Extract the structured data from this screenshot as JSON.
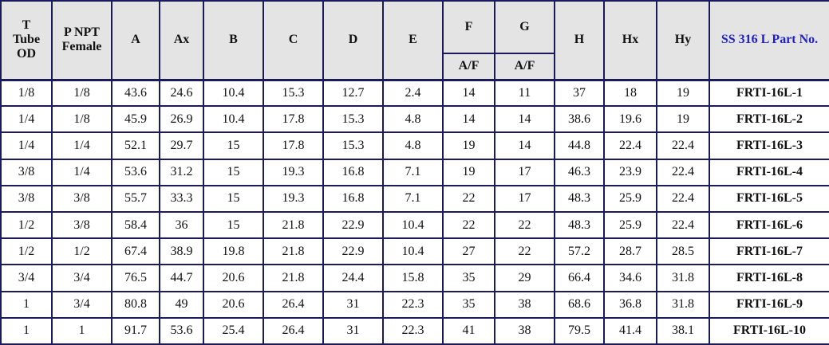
{
  "table": {
    "header": [
      "T\nTube\nOD",
      "P NPT\nFemale",
      "A",
      "Ax",
      "B",
      "C",
      "D",
      "E",
      "F",
      "G",
      "H",
      "Hx",
      "Hy",
      "SS 316 L Part No."
    ],
    "subheader": [
      "A/F",
      "A/F"
    ],
    "rows": [
      [
        "1/8",
        "1/8",
        "43.6",
        "24.6",
        "10.4",
        "15.3",
        "12.7",
        "2.4",
        "14",
        "11",
        "37",
        "18",
        "19",
        "FRTI-16L-1"
      ],
      [
        "1/4",
        "1/8",
        "45.9",
        "26.9",
        "10.4",
        "17.8",
        "15.3",
        "4.8",
        "14",
        "14",
        "38.6",
        "19.6",
        "19",
        "FRTI-16L-2"
      ],
      [
        "1/4",
        "1/4",
        "52.1",
        "29.7",
        "15",
        "17.8",
        "15.3",
        "4.8",
        "19",
        "14",
        "44.8",
        "22.4",
        "22.4",
        "FRTI-16L-3"
      ],
      [
        "3/8",
        "1/4",
        "53.6",
        "31.2",
        "15",
        "19.3",
        "16.8",
        "7.1",
        "19",
        "17",
        "46.3",
        "23.9",
        "22.4",
        "FRTI-16L-4"
      ],
      [
        "3/8",
        "3/8",
        "55.7",
        "33.3",
        "15",
        "19.3",
        "16.8",
        "7.1",
        "22",
        "17",
        "48.3",
        "25.9",
        "22.4",
        "FRTI-16L-5"
      ],
      [
        "1/2",
        "3/8",
        "58.4",
        "36",
        "15",
        "21.8",
        "22.9",
        "10.4",
        "22",
        "22",
        "48.3",
        "25.9",
        "22.4",
        "FRTI-16L-6"
      ],
      [
        "1/2",
        "1/2",
        "67.4",
        "38.9",
        "19.8",
        "21.8",
        "22.9",
        "10.4",
        "27",
        "22",
        "57.2",
        "28.7",
        "28.5",
        "FRTI-16L-7"
      ],
      [
        "3/4",
        "3/4",
        "76.5",
        "44.7",
        "20.6",
        "21.8",
        "24.4",
        "15.8",
        "35",
        "29",
        "66.4",
        "34.6",
        "31.8",
        "FRTI-16L-8"
      ],
      [
        "1",
        "3/4",
        "80.8",
        "49",
        "20.6",
        "26.4",
        "31",
        "22.3",
        "35",
        "38",
        "68.6",
        "36.8",
        "31.8",
        "FRTI-16L-9"
      ],
      [
        "1",
        "1",
        "91.7",
        "53.6",
        "25.4",
        "26.4",
        "31",
        "22.3",
        "41",
        "38",
        "79.5",
        "41.4",
        "38.1",
        "FRTI-16L-10"
      ]
    ]
  }
}
